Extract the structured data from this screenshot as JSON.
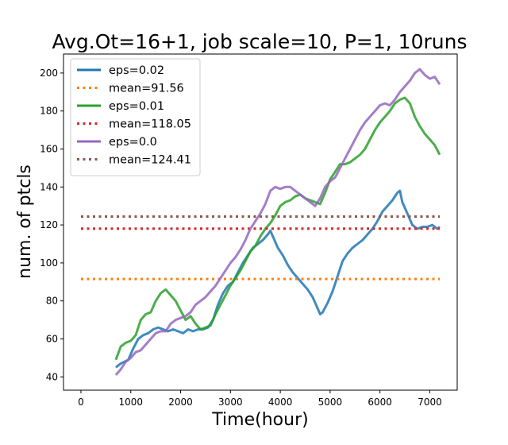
{
  "chart_data": {
    "type": "line",
    "title": "Avg.Ot=16+1, job scale=10, P=1, 10runs",
    "xlabel": "Time(hour)",
    "ylabel": "num. of ptcls",
    "xlim": [
      -350,
      7550
    ],
    "ylim": [
      33,
      210
    ],
    "xticks": [
      0,
      1000,
      2000,
      3000,
      4000,
      5000,
      6000,
      7000
    ],
    "yticks": [
      40,
      60,
      80,
      100,
      120,
      140,
      160,
      180,
      200
    ],
    "grid": false,
    "legend_position": "top-left",
    "series": [
      {
        "name": "eps=0.02",
        "style": "solid",
        "color": "#1f77b4",
        "x": [
          700,
          800,
          950,
          1050,
          1150,
          1250,
          1350,
          1450,
          1550,
          1650,
          1750,
          1850,
          1950,
          2050,
          2150,
          2250,
          2350,
          2450,
          2550,
          2650,
          2750,
          2850,
          2950,
          3050,
          3150,
          3250,
          3350,
          3450,
          3550,
          3650,
          3750,
          3800,
          3850,
          3950,
          4050,
          4150,
          4250,
          4350,
          4450,
          4550,
          4650,
          4750,
          4800,
          4850,
          4950,
          5050,
          5150,
          5250,
          5350,
          5450,
          5550,
          5650,
          5750,
          5850,
          5950,
          6050,
          6150,
          6250,
          6350,
          6400,
          6450,
          6550,
          6650,
          6750,
          6850,
          6950,
          7050,
          7150,
          7200
        ],
        "values": [
          45,
          47,
          49,
          55,
          60,
          62,
          63,
          65,
          66,
          65,
          64,
          65,
          64,
          63,
          65,
          64,
          65,
          65,
          66,
          70,
          78,
          84,
          88,
          90,
          95,
          100,
          104,
          108,
          110,
          112,
          115,
          117,
          114,
          108,
          104,
          99,
          95,
          92,
          89,
          86,
          82,
          76,
          73,
          74,
          79,
          85,
          93,
          101,
          105,
          108,
          110,
          112,
          115,
          118,
          122,
          127,
          130,
          133,
          137,
          138,
          132,
          126,
          120,
          118,
          119,
          119,
          120,
          118,
          119
        ]
      },
      {
        "name": "mean=91.56",
        "style": "dotted",
        "color": "#ff7f0e",
        "x": [
          0,
          7200
        ],
        "values": [
          91.56,
          91.56
        ]
      },
      {
        "name": "eps=0.01",
        "style": "solid",
        "color": "#2ca02c",
        "x": [
          700,
          800,
          900,
          1000,
          1100,
          1200,
          1300,
          1400,
          1500,
          1600,
          1700,
          1800,
          1900,
          2000,
          2100,
          2200,
          2300,
          2400,
          2500,
          2600,
          2700,
          2800,
          2900,
          3000,
          3100,
          3200,
          3300,
          3400,
          3500,
          3600,
          3700,
          3800,
          3900,
          4000,
          4100,
          4200,
          4300,
          4400,
          4500,
          4600,
          4700,
          4800,
          4900,
          5000,
          5100,
          5200,
          5300,
          5400,
          5500,
          5600,
          5700,
          5800,
          5900,
          6000,
          6100,
          6200,
          6300,
          6400,
          6500,
          6600,
          6700,
          6800,
          6900,
          7000,
          7100,
          7200
        ],
        "values": [
          49,
          56,
          58,
          59,
          62,
          70,
          73,
          74,
          80,
          84,
          86,
          83,
          80,
          75,
          70,
          72,
          68,
          65,
          66,
          67,
          73,
          78,
          83,
          88,
          92,
          96,
          101,
          106,
          109,
          114,
          118,
          121,
          125,
          130,
          132,
          133,
          135,
          136,
          134,
          133,
          132,
          131,
          137,
          144,
          148,
          152,
          152,
          153,
          155,
          157,
          160,
          165,
          170,
          174,
          177,
          180,
          184,
          186,
          187,
          184,
          177,
          172,
          168,
          165,
          162,
          157
        ]
      },
      {
        "name": "mean=118.05",
        "style": "dotted",
        "color": "#d62728",
        "x": [
          0,
          7200
        ],
        "values": [
          118.05,
          118.05
        ]
      },
      {
        "name": "eps=0.0",
        "style": "solid",
        "color": "#9467bd",
        "x": [
          700,
          800,
          900,
          1000,
          1100,
          1200,
          1300,
          1400,
          1500,
          1600,
          1700,
          1800,
          1900,
          2000,
          2100,
          2200,
          2300,
          2400,
          2500,
          2600,
          2700,
          2800,
          2900,
          3000,
          3100,
          3200,
          3300,
          3400,
          3500,
          3600,
          3700,
          3800,
          3900,
          4000,
          4100,
          4200,
          4300,
          4400,
          4500,
          4600,
          4700,
          4800,
          4900,
          5000,
          5100,
          5200,
          5300,
          5400,
          5500,
          5600,
          5700,
          5800,
          5900,
          6000,
          6100,
          6200,
          6300,
          6400,
          6500,
          6600,
          6700,
          6800,
          6900,
          7000,
          7100,
          7200
        ],
        "values": [
          41,
          44,
          48,
          50,
          53,
          54,
          57,
          60,
          63,
          64,
          64,
          68,
          70,
          71,
          72,
          74,
          78,
          80,
          82,
          85,
          88,
          92,
          96,
          100,
          103,
          107,
          112,
          118,
          122,
          126,
          131,
          138,
          140,
          139,
          140,
          140,
          138,
          136,
          134,
          132,
          130,
          134,
          140,
          143,
          145,
          150,
          155,
          160,
          165,
          170,
          174,
          177,
          180,
          183,
          184,
          183,
          186,
          190,
          193,
          196,
          200,
          202,
          199,
          197,
          198,
          194
        ]
      },
      {
        "name": "mean=124.41",
        "style": "dotted",
        "color": "#8c564b",
        "x": [
          0,
          7200
        ],
        "values": [
          124.41,
          124.41
        ]
      }
    ]
  }
}
